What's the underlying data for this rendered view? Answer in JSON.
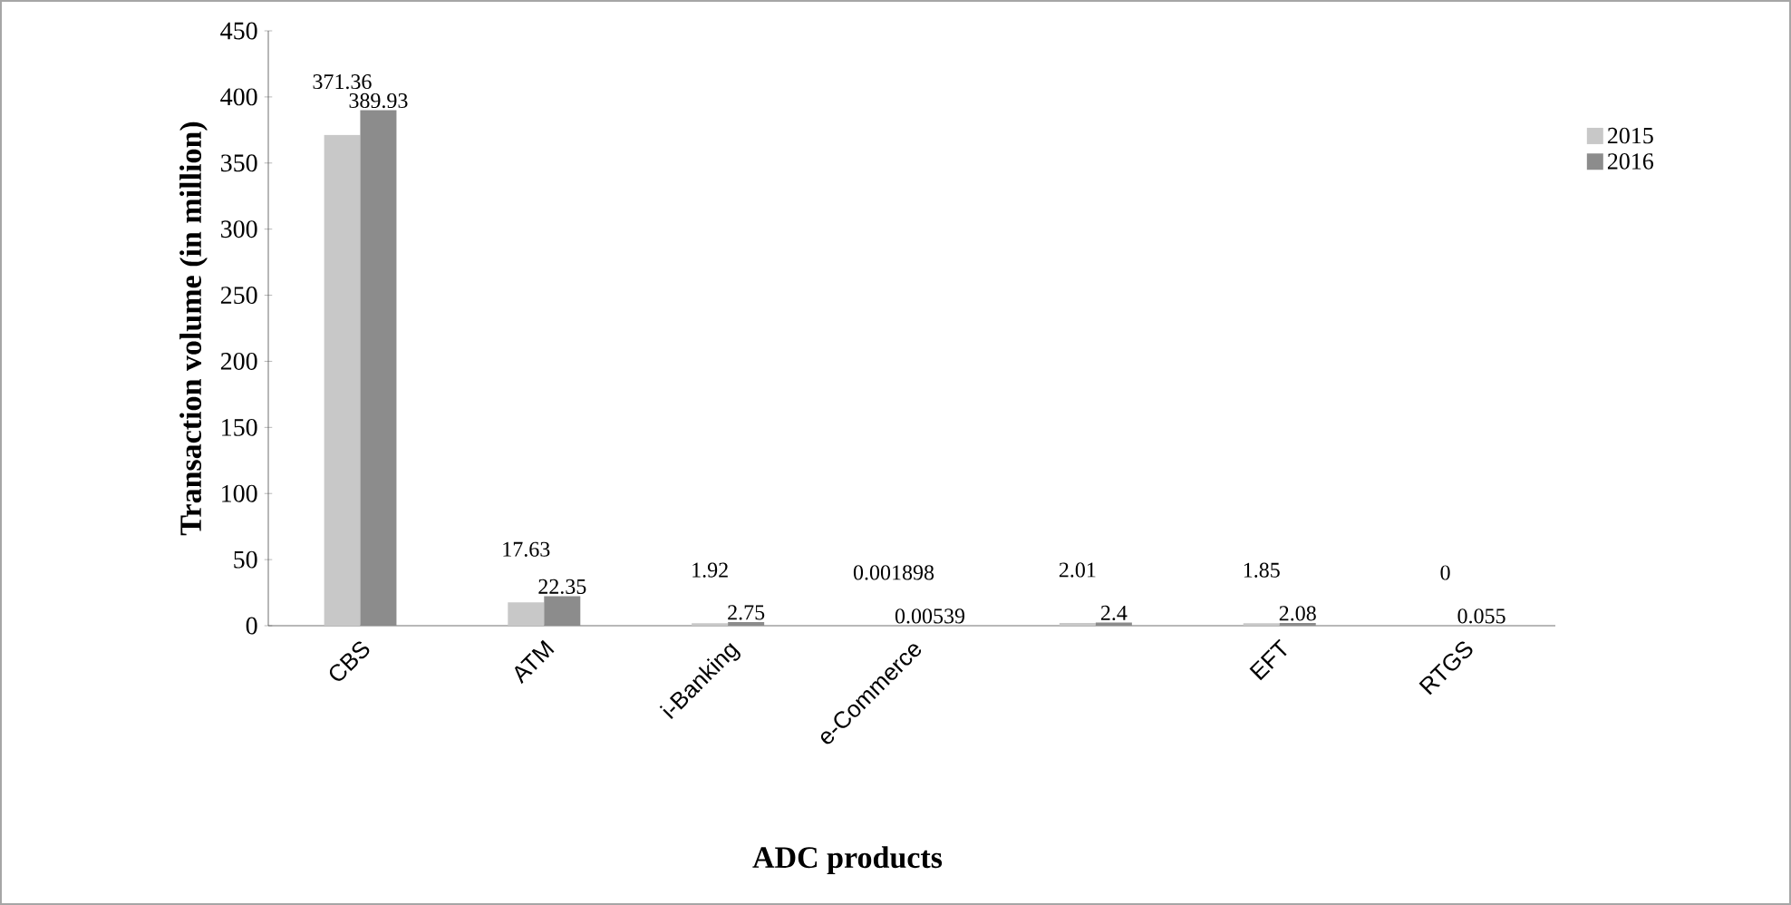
{
  "chart_data": {
    "type": "bar",
    "xlabel": "ADC products",
    "ylabel": "Transaction volume (in million)",
    "categories": [
      "CBS",
      "ATM",
      "i-Banking",
      "e-Commerce",
      null,
      "EFT",
      "RTGS"
    ],
    "series": [
      {
        "name": "2015",
        "color": "#c8c8c8",
        "values": [
          371.36,
          17.63,
          1.92,
          0.001898,
          2.01,
          1.85,
          0
        ]
      },
      {
        "name": "2016",
        "color": "#8c8c8c",
        "values": [
          389.93,
          22.35,
          2.75,
          0.00539,
          2.4,
          2.08,
          0.055
        ]
      }
    ],
    "ylim": [
      0,
      450
    ],
    "yticks": [
      0,
      50,
      100,
      150,
      200,
      250,
      300,
      350,
      400,
      450
    ],
    "data_labels": true,
    "legend": "right",
    "grid": false
  }
}
